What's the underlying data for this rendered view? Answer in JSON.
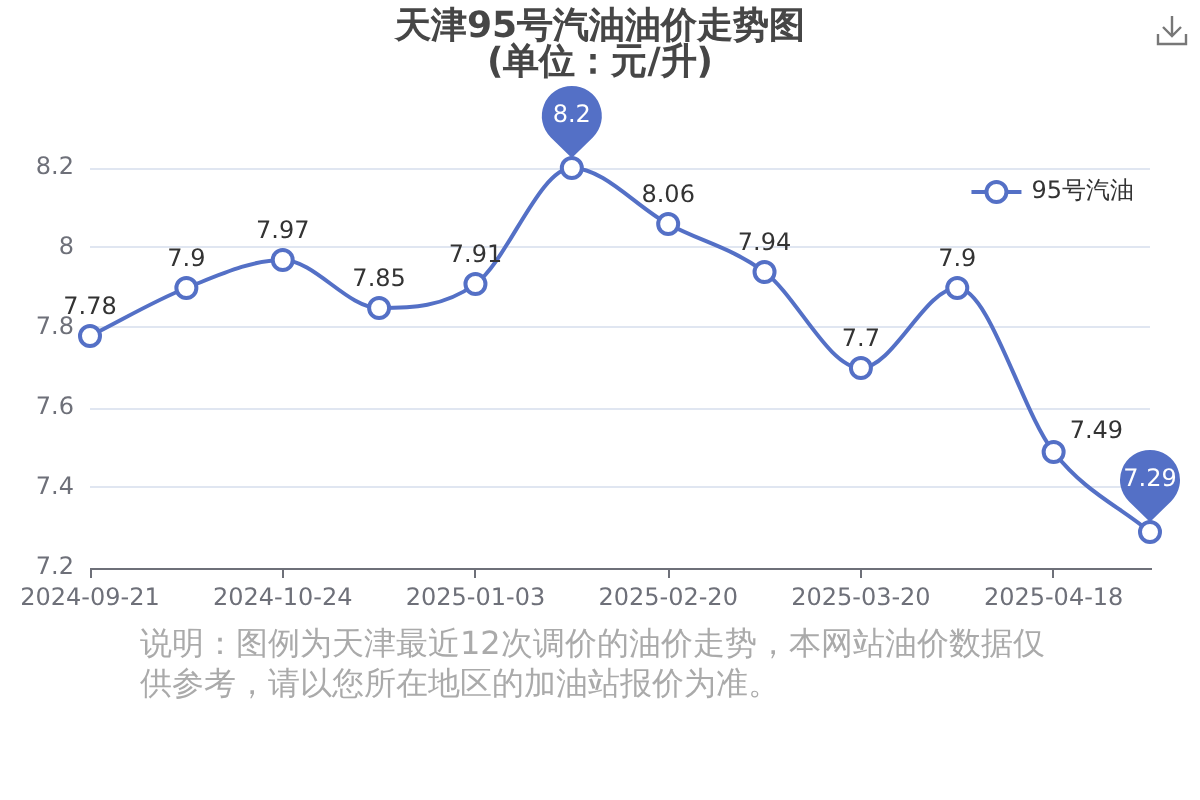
{
  "chart_data": {
    "type": "line",
    "title": "天津95号汽油油价走势图",
    "subtitle": "(单位：元/升)",
    "annotations": [
      "说明：图例为天津最近12次调价的油价走势，本网站油价数据仅供参考，请以您所在地区的加油站报价为准。"
    ],
    "categories": [
      "2024-09-21",
      null,
      "2024-10-24",
      null,
      "2025-01-03",
      null,
      "2025-02-20",
      null,
      "2025-03-20",
      null,
      "2025-04-18",
      null
    ],
    "series": [
      {
        "name": "95号汽油",
        "color": "#5470c6",
        "values": [
          7.78,
          7.9,
          7.97,
          7.85,
          7.91,
          8.2,
          8.06,
          7.94,
          7.7,
          7.9,
          7.49,
          7.29
        ]
      }
    ],
    "ylim": [
      7.2,
      8.2
    ],
    "yticks": [
      7.2,
      7.4,
      7.6,
      7.8,
      8,
      8.2
    ],
    "grid": "y",
    "legend": "top right",
    "marker": "circle",
    "data_labels": true
  }
}
